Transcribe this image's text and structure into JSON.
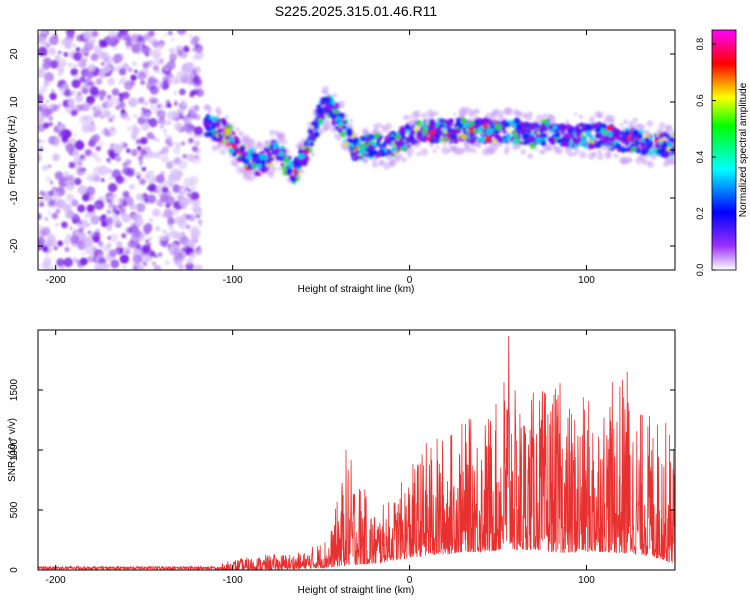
{
  "figure_title": "S225.2025.315.01.46.R11",
  "chart_data": [
    {
      "type": "heatmap",
      "title": "S225.2025.315.01.46.R11",
      "xlabel": "Height of straight line (km)",
      "ylabel": "Frequency (Hz)",
      "xlim": [
        -210,
        150
      ],
      "ylim": [
        -25,
        25
      ],
      "xticks": [
        -200,
        -100,
        0,
        100
      ],
      "yticks": [
        -20,
        -10,
        0,
        10,
        20
      ],
      "grid": false,
      "colorbar": {
        "label": "Normalized spectral amplitude",
        "range": [
          0,
          0.85
        ],
        "ticks": [
          "0.0",
          "0.2",
          "0.4",
          "0.6",
          "0.8"
        ],
        "colors": [
          "#ffffff",
          "#7b00ff",
          "#0000ff",
          "#00ffff",
          "#00ff00",
          "#ffff00",
          "#ff0000",
          "#ff00ff"
        ]
      },
      "noise_region_x": [
        -210,
        -118
      ],
      "ridge": {
        "x": [
          -115,
          -105,
          -95,
          -85,
          -75,
          -65,
          -55,
          -50,
          -45,
          -40,
          -35,
          -30,
          -20,
          -10,
          0,
          10,
          20,
          30,
          40,
          50,
          60,
          70,
          80,
          90,
          100,
          110,
          120,
          130,
          140,
          150
        ],
        "freq_hz": [
          5,
          4,
          -1,
          -3,
          0,
          -5,
          3,
          8,
          9,
          6,
          3,
          0,
          1,
          1,
          3,
          4,
          4,
          4,
          4,
          4,
          4,
          3,
          4,
          3,
          3,
          3,
          2,
          2,
          1,
          1
        ]
      }
    },
    {
      "type": "line",
      "xlabel": "Height of straight line (km)",
      "ylabel": "SNR (10 * v/v)",
      "xlim": [
        -210,
        150
      ],
      "ylim": [
        0,
        2000
      ],
      "xticks": [
        -200,
        -100,
        0,
        100
      ],
      "yticks": [
        0,
        500,
        1000,
        1500
      ],
      "grid": false,
      "series": [
        {
          "name": "SNR",
          "color": "#e8302f",
          "envelope_x": [
            -210,
            -110,
            -100,
            -80,
            -60,
            -45,
            -40,
            -35,
            -20,
            -10,
            0,
            10,
            20,
            30,
            40,
            50,
            56,
            60,
            70,
            80,
            90,
            100,
            110,
            120,
            130,
            140,
            150
          ],
          "envelope_max": [
            20,
            30,
            90,
            130,
            150,
            300,
            650,
            1000,
            500,
            600,
            850,
            1100,
            1150,
            1250,
            1300,
            1400,
            2000,
            1450,
            1500,
            1550,
            1400,
            1450,
            1500,
            1650,
            1350,
            1300,
            1200
          ],
          "envelope_min": [
            0,
            0,
            0,
            5,
            10,
            20,
            30,
            40,
            50,
            80,
            100,
            120,
            130,
            150,
            150,
            160,
            200,
            160,
            170,
            150,
            140,
            150,
            150,
            140,
            130,
            100,
            50
          ]
        }
      ],
      "peaks": [
        {
          "x": 56,
          "y": 1950
        },
        {
          "x": 123,
          "y": 1650
        },
        {
          "x": 85,
          "y": 1560
        },
        {
          "x": -36,
          "y": 1000
        }
      ]
    }
  ]
}
